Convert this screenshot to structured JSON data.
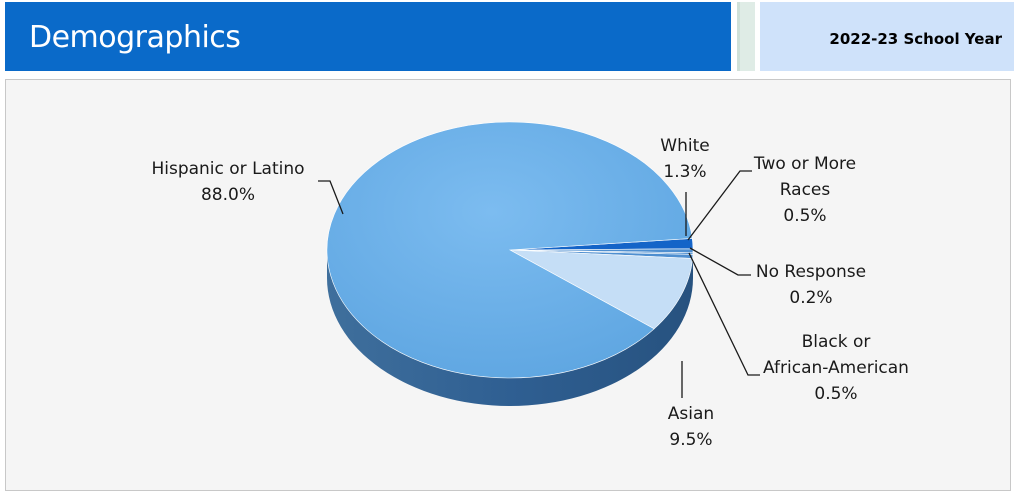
{
  "header": {
    "title": "Demographics",
    "school_year": "2022-23 School Year"
  },
  "colors": {
    "header_blue": "#0a6ac9",
    "year_box": "#cfe2fa",
    "panel_bg": "#f5f5f5",
    "hispanic": "#6aaee6",
    "asian": "#c5def6",
    "white": "#1464c8",
    "other_slices": "#4f8fd0"
  },
  "chart_data": {
    "type": "pie",
    "title": "",
    "slices": [
      {
        "label_lines": [
          "Hispanic or Latino",
          "88.0%"
        ],
        "category": "Hispanic or Latino",
        "value": 88.0,
        "display": "88.0%"
      },
      {
        "label_lines": [
          "White",
          "1.3%"
        ],
        "category": "White",
        "value": 1.3,
        "display": "1.3%"
      },
      {
        "label_lines": [
          "Two or More",
          "Races",
          "0.5%"
        ],
        "category": "Two or More Races",
        "value": 0.5,
        "display": "0.5%"
      },
      {
        "label_lines": [
          "No Response",
          "0.2%"
        ],
        "category": "No Response",
        "value": 0.2,
        "display": "0.2%"
      },
      {
        "label_lines": [
          "Black or",
          "African-American",
          "0.5%"
        ],
        "category": "Black or African-American",
        "value": 0.5,
        "display": "0.5%"
      },
      {
        "label_lines": [
          "Asian",
          "9.5%"
        ],
        "category": "Asian",
        "value": 9.5,
        "display": "9.5%"
      }
    ]
  }
}
